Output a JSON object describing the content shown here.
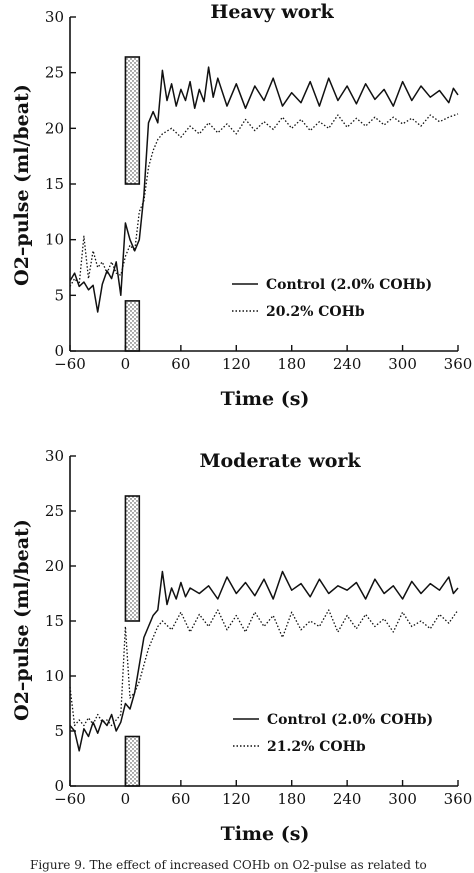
{
  "chart_data": [
    {
      "type": "line",
      "title": "Heavy work",
      "xlabel": "Time (s)",
      "ylabel": "O2–pulse (ml/beat)",
      "xlim": [
        -60,
        360
      ],
      "ylim": [
        0,
        30
      ],
      "x_ticks": [
        "−60",
        "0",
        "60",
        "120",
        "180",
        "240",
        "300",
        "360"
      ],
      "y_ticks": [
        "0",
        "5",
        "10",
        "15",
        "20",
        "25",
        "30"
      ],
      "legend_position": "right-middle",
      "shaded_interval": [
        0,
        15
      ],
      "series": [
        {
          "name": "Control (2.0% COHb)",
          "style": "solid",
          "points": [
            [
              -60,
              6.3
            ],
            [
              -55,
              7.0
            ],
            [
              -50,
              5.8
            ],
            [
              -45,
              6.2
            ],
            [
              -40,
              5.5
            ],
            [
              -35,
              5.9
            ],
            [
              -30,
              3.5
            ],
            [
              -25,
              6.0
            ],
            [
              -20,
              7.2
            ],
            [
              -15,
              6.5
            ],
            [
              -10,
              8.0
            ],
            [
              -5,
              5.0
            ],
            [
              0,
              11.5
            ],
            [
              5,
              10.0
            ],
            [
              10,
              9.0
            ],
            [
              15,
              10.0
            ],
            [
              20,
              14.0
            ],
            [
              25,
              20.5
            ],
            [
              30,
              21.5
            ],
            [
              35,
              20.5
            ],
            [
              40,
              25.2
            ],
            [
              45,
              22.5
            ],
            [
              50,
              24.0
            ],
            [
              55,
              22.0
            ],
            [
              60,
              23.5
            ],
            [
              65,
              22.5
            ],
            [
              70,
              24.2
            ],
            [
              75,
              21.8
            ],
            [
              80,
              23.5
            ],
            [
              85,
              22.4
            ],
            [
              90,
              25.5
            ],
            [
              95,
              22.8
            ],
            [
              100,
              24.5
            ],
            [
              110,
              22.0
            ],
            [
              120,
              24.0
            ],
            [
              130,
              21.8
            ],
            [
              140,
              23.8
            ],
            [
              150,
              22.5
            ],
            [
              160,
              24.5
            ],
            [
              170,
              22.0
            ],
            [
              180,
              23.2
            ],
            [
              190,
              22.3
            ],
            [
              200,
              24.2
            ],
            [
              210,
              22.0
            ],
            [
              220,
              24.5
            ],
            [
              230,
              22.5
            ],
            [
              240,
              23.8
            ],
            [
              250,
              22.2
            ],
            [
              260,
              24.0
            ],
            [
              270,
              22.6
            ],
            [
              280,
              23.5
            ],
            [
              290,
              22.0
            ],
            [
              300,
              24.2
            ],
            [
              310,
              22.5
            ],
            [
              320,
              23.8
            ],
            [
              330,
              22.8
            ],
            [
              340,
              23.4
            ],
            [
              350,
              22.3
            ],
            [
              355,
              23.6
            ],
            [
              360,
              23.0
            ]
          ]
        },
        {
          "name": "20.2% COHb",
          "style": "dotted",
          "points": [
            [
              -60,
              5.8
            ],
            [
              -55,
              6.5
            ],
            [
              -50,
              6.0
            ],
            [
              -45,
              10.3
            ],
            [
              -40,
              6.5
            ],
            [
              -35,
              9.0
            ],
            [
              -30,
              7.5
            ],
            [
              -25,
              8.0
            ],
            [
              -20,
              7.0
            ],
            [
              -15,
              8.0
            ],
            [
              -10,
              7.0
            ],
            [
              -5,
              6.8
            ],
            [
              0,
              8.5
            ],
            [
              5,
              9.5
            ],
            [
              10,
              9.0
            ],
            [
              15,
              12.5
            ],
            [
              20,
              13.5
            ],
            [
              25,
              16.5
            ],
            [
              30,
              18.0
            ],
            [
              35,
              19.0
            ],
            [
              40,
              19.5
            ],
            [
              50,
              20.0
            ],
            [
              60,
              19.2
            ],
            [
              70,
              20.2
            ],
            [
              80,
              19.5
            ],
            [
              90,
              20.5
            ],
            [
              100,
              19.6
            ],
            [
              110,
              20.4
            ],
            [
              120,
              19.5
            ],
            [
              130,
              20.8
            ],
            [
              140,
              19.8
            ],
            [
              150,
              20.6
            ],
            [
              160,
              19.9
            ],
            [
              170,
              21.0
            ],
            [
              180,
              20.0
            ],
            [
              190,
              20.8
            ],
            [
              200,
              19.8
            ],
            [
              210,
              20.6
            ],
            [
              220,
              20.0
            ],
            [
              230,
              21.2
            ],
            [
              240,
              20.1
            ],
            [
              250,
              20.9
            ],
            [
              260,
              20.2
            ],
            [
              270,
              21.0
            ],
            [
              280,
              20.3
            ],
            [
              290,
              21.0
            ],
            [
              300,
              20.4
            ],
            [
              310,
              20.9
            ],
            [
              320,
              20.2
            ],
            [
              330,
              21.2
            ],
            [
              340,
              20.6
            ],
            [
              350,
              21.0
            ],
            [
              360,
              21.3
            ]
          ]
        }
      ]
    },
    {
      "type": "line",
      "title": "Moderate work",
      "xlabel": "Time (s)",
      "ylabel": "O2–pulse (ml/beat)",
      "xlim": [
        -60,
        360
      ],
      "ylim": [
        0,
        30
      ],
      "x_ticks": [
        "−60",
        "0",
        "60",
        "120",
        "180",
        "240",
        "300",
        "360"
      ],
      "y_ticks": [
        "0",
        "5",
        "10",
        "15",
        "20",
        "25",
        "30"
      ],
      "legend_position": "right-lower",
      "shaded_interval": [
        0,
        15
      ],
      "series": [
        {
          "name": "Control (2.0% COHb)",
          "style": "solid",
          "points": [
            [
              -60,
              5.5
            ],
            [
              -55,
              5.0
            ],
            [
              -50,
              3.2
            ],
            [
              -45,
              5.2
            ],
            [
              -40,
              4.5
            ],
            [
              -35,
              5.8
            ],
            [
              -30,
              4.8
            ],
            [
              -25,
              6.0
            ],
            [
              -20,
              5.5
            ],
            [
              -15,
              6.5
            ],
            [
              -10,
              5.0
            ],
            [
              -5,
              5.8
            ],
            [
              0,
              7.5
            ],
            [
              5,
              7.0
            ],
            [
              10,
              8.5
            ],
            [
              15,
              11.0
            ],
            [
              20,
              13.5
            ],
            [
              25,
              14.5
            ],
            [
              30,
              15.5
            ],
            [
              35,
              16.0
            ],
            [
              40,
              19.5
            ],
            [
              45,
              16.5
            ],
            [
              50,
              18.0
            ],
            [
              55,
              17.0
            ],
            [
              60,
              18.5
            ],
            [
              65,
              17.2
            ],
            [
              70,
              18.0
            ],
            [
              80,
              17.5
            ],
            [
              90,
              18.2
            ],
            [
              100,
              17.0
            ],
            [
              110,
              19.0
            ],
            [
              120,
              17.5
            ],
            [
              130,
              18.5
            ],
            [
              140,
              17.3
            ],
            [
              150,
              18.8
            ],
            [
              160,
              17.0
            ],
            [
              170,
              19.5
            ],
            [
              180,
              17.8
            ],
            [
              190,
              18.4
            ],
            [
              200,
              17.2
            ],
            [
              210,
              18.8
            ],
            [
              220,
              17.5
            ],
            [
              230,
              18.2
            ],
            [
              240,
              17.8
            ],
            [
              250,
              18.5
            ],
            [
              260,
              17.0
            ],
            [
              270,
              18.8
            ],
            [
              280,
              17.5
            ],
            [
              290,
              18.2
            ],
            [
              300,
              17.0
            ],
            [
              310,
              18.6
            ],
            [
              320,
              17.5
            ],
            [
              330,
              18.4
            ],
            [
              340,
              17.8
            ],
            [
              350,
              19.0
            ],
            [
              355,
              17.5
            ],
            [
              360,
              18.0
            ]
          ]
        },
        {
          "name": "21.2% COHb",
          "style": "dotted",
          "points": [
            [
              -60,
              9.0
            ],
            [
              -55,
              5.5
            ],
            [
              -50,
              6.0
            ],
            [
              -45,
              5.5
            ],
            [
              -40,
              6.2
            ],
            [
              -35,
              5.6
            ],
            [
              -30,
              6.5
            ],
            [
              -25,
              5.8
            ],
            [
              -20,
              6.0
            ],
            [
              -15,
              5.5
            ],
            [
              -10,
              6.0
            ],
            [
              -5,
              6.5
            ],
            [
              0,
              14.5
            ],
            [
              5,
              8.0
            ],
            [
              10,
              8.5
            ],
            [
              15,
              9.5
            ],
            [
              20,
              11.0
            ],
            [
              25,
              12.5
            ],
            [
              30,
              13.5
            ],
            [
              35,
              14.5
            ],
            [
              40,
              15.0
            ],
            [
              50,
              14.2
            ],
            [
              60,
              15.8
            ],
            [
              70,
              14.0
            ],
            [
              80,
              15.6
            ],
            [
              90,
              14.5
            ],
            [
              100,
              16.0
            ],
            [
              110,
              14.2
            ],
            [
              120,
              15.5
            ],
            [
              130,
              14.0
            ],
            [
              140,
              15.8
            ],
            [
              150,
              14.5
            ],
            [
              160,
              15.5
            ],
            [
              170,
              13.5
            ],
            [
              180,
              15.8
            ],
            [
              190,
              14.2
            ],
            [
              200,
              15.0
            ],
            [
              210,
              14.5
            ],
            [
              220,
              16.0
            ],
            [
              230,
              14.0
            ],
            [
              240,
              15.5
            ],
            [
              250,
              14.3
            ],
            [
              260,
              15.6
            ],
            [
              270,
              14.5
            ],
            [
              280,
              15.2
            ],
            [
              290,
              14.0
            ],
            [
              300,
              15.8
            ],
            [
              310,
              14.5
            ],
            [
              320,
              15.0
            ],
            [
              330,
              14.3
            ],
            [
              340,
              15.6
            ],
            [
              350,
              14.8
            ],
            [
              360,
              16.0
            ]
          ]
        }
      ]
    }
  ],
  "caption": "Figure 9. The effect of increased COHb on O2-pulse as related to"
}
